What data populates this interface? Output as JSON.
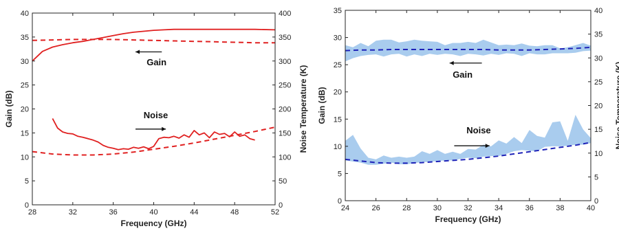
{
  "chart_data": [
    {
      "type": "line",
      "panel": "left",
      "xlabel": "Frequency (GHz)",
      "ylabel": "Gain (dB)",
      "y2label": "Noise Temperature (K)",
      "xlim": [
        28,
        52
      ],
      "ylim": [
        0,
        40
      ],
      "y2lim": [
        0,
        400
      ],
      "xticks": [
        28,
        32,
        36,
        40,
        44,
        48,
        52
      ],
      "yticks": [
        0,
        5,
        10,
        15,
        20,
        25,
        30,
        35,
        40
      ],
      "y2ticks": [
        0,
        50,
        100,
        150,
        200,
        250,
        300,
        350,
        400
      ],
      "grid": false,
      "legend": "none",
      "series": [
        {
          "axis": "left",
          "style": "solid",
          "color": "#e02020",
          "x": [
            28,
            29,
            30,
            31,
            32,
            33,
            34,
            35,
            36,
            37,
            38,
            39,
            40,
            41,
            42,
            43,
            44,
            46,
            48,
            50,
            52
          ],
          "y": [
            30.0,
            32.0,
            32.9,
            33.4,
            33.8,
            34.1,
            34.5,
            34.9,
            35.3,
            35.7,
            36.0,
            36.2,
            36.4,
            36.5,
            36.6,
            36.6,
            36.6,
            36.6,
            36.6,
            36.6,
            36.5
          ]
        },
        {
          "axis": "left",
          "style": "dashed",
          "color": "#e02020",
          "x": [
            28,
            30,
            32,
            34,
            36,
            38,
            40,
            42,
            44,
            46,
            48,
            50,
            52
          ],
          "y": [
            34.3,
            34.4,
            34.5,
            34.5,
            34.5,
            34.4,
            34.3,
            34.2,
            34.1,
            34.0,
            33.9,
            33.8,
            33.8
          ]
        },
        {
          "axis": "right",
          "style": "solid",
          "color": "#e02020",
          "x": [
            30,
            30.5,
            31,
            31.5,
            32,
            32.5,
            33,
            33.5,
            34,
            34.5,
            35,
            35.5,
            36,
            36.5,
            37,
            37.5,
            38,
            38.5,
            39,
            39.5,
            40,
            40.5,
            41,
            41.5,
            42,
            42.5,
            43,
            43.5,
            44,
            44.5,
            45,
            45.5,
            46,
            46.5,
            47,
            47.5,
            48,
            48.5,
            49,
            49.5,
            50
          ],
          "y": [
            180,
            160,
            152,
            149,
            148,
            143,
            141,
            138,
            135,
            131,
            124,
            120,
            118,
            115,
            117,
            116,
            120,
            118,
            121,
            117,
            122,
            138,
            141,
            140,
            143,
            139,
            146,
            141,
            155,
            146,
            150,
            140,
            152,
            147,
            149,
            142,
            152,
            143,
            146,
            138,
            135
          ]
        },
        {
          "axis": "right",
          "style": "dashed",
          "color": "#e02020",
          "x": [
            28,
            30,
            32,
            34,
            36,
            38,
            40,
            42,
            44,
            46,
            48,
            50,
            52
          ],
          "y": [
            111,
            106,
            104,
            104,
            106,
            110,
            116,
            122,
            129,
            137,
            145,
            153,
            162
          ]
        }
      ],
      "annotations": [
        {
          "text": "Gain",
          "x": 39.3,
          "y": 29.1,
          "arrow": "left",
          "arrow_from": 40.8,
          "arrow_to": 38.2,
          "arrow_y": 31.9
        },
        {
          "text": "Noise",
          "x": 39.0,
          "y": 18.1,
          "arrow": "right",
          "arrow_from": 38.2,
          "arrow_to": 41.2,
          "arrow_y": 15.8
        }
      ]
    },
    {
      "type": "area",
      "panel": "right",
      "xlabel": "Frequency (GHz)",
      "ylabel": "Gain (dB)",
      "y2label": "Noise Temperature (K)",
      "xlim": [
        24,
        40
      ],
      "ylim": [
        0,
        35
      ],
      "y2lim": [
        0,
        40
      ],
      "xticks": [
        24,
        26,
        28,
        30,
        32,
        34,
        36,
        38,
        40
      ],
      "yticks": [
        0,
        5,
        10,
        15,
        20,
        25,
        30,
        35
      ],
      "y2ticks": [
        0,
        5,
        10,
        15,
        20,
        25,
        30,
        35,
        40
      ],
      "grid": false,
      "legend": "none",
      "bands": [
        {
          "axis": "left",
          "color": "#a9ccee",
          "x": [
            24,
            24.5,
            25,
            25.5,
            26,
            26.5,
            27,
            27.5,
            28,
            28.5,
            29,
            29.5,
            30,
            30.5,
            31,
            31.5,
            32,
            32.5,
            33,
            33.5,
            34,
            34.5,
            35,
            35.5,
            36,
            36.5,
            37,
            37.5,
            38,
            38.5,
            39,
            39.5,
            40
          ],
          "lower": [
            25.6,
            26.2,
            26.6,
            26.8,
            26.9,
            26.5,
            26.9,
            27.0,
            26.5,
            26.9,
            26.6,
            27.0,
            26.8,
            27.0,
            26.9,
            26.6,
            27.0,
            26.9,
            26.7,
            27.0,
            26.8,
            27.1,
            27.0,
            26.6,
            27.1,
            26.9,
            26.9,
            27.1,
            27.1,
            27.1,
            27.2,
            27.5,
            27.6
          ],
          "upper": [
            28.6,
            28.2,
            29.0,
            28.4,
            29.4,
            29.6,
            29.6,
            29.1,
            29.3,
            29.6,
            29.4,
            29.3,
            29.2,
            28.6,
            29.0,
            29.0,
            29.2,
            29.0,
            29.6,
            29.1,
            28.6,
            28.7,
            28.6,
            28.9,
            28.5,
            28.4,
            28.6,
            28.6,
            28.0,
            28.2,
            28.6,
            29.0,
            28.5
          ]
        },
        {
          "axis": "left",
          "color": "#a9ccee",
          "x": [
            24,
            24.5,
            25,
            25.5,
            26,
            26.5,
            27,
            27.5,
            28,
            28.5,
            29,
            29.5,
            30,
            30.5,
            31,
            31.5,
            32,
            32.5,
            33,
            33.5,
            34,
            34.5,
            35,
            35.5,
            36,
            36.5,
            37,
            37.5,
            38,
            38.5,
            39,
            39.5,
            40
          ],
          "lower": [
            7.4,
            7.2,
            7.0,
            6.6,
            6.6,
            6.8,
            7.0,
            6.7,
            6.7,
            6.9,
            7.1,
            7.1,
            7.3,
            7.4,
            7.4,
            7.7,
            7.9,
            7.8,
            8.1,
            8.2,
            8.2,
            8.6,
            9.1,
            9.3,
            9.2,
            9.1,
            9.9,
            10.0,
            10.0,
            10.1,
            10.3,
            10.3,
            10.6
          ],
          "upper": [
            11.0,
            12.1,
            9.6,
            7.9,
            7.6,
            8.3,
            7.9,
            8.1,
            7.9,
            8.1,
            9.1,
            8.6,
            9.3,
            8.6,
            9.0,
            8.6,
            9.5,
            9.4,
            10.3,
            10.0,
            11.1,
            10.5,
            11.7,
            10.6,
            13.0,
            11.9,
            11.6,
            14.4,
            14.6,
            11.0,
            15.8,
            13.1,
            11.5
          ]
        }
      ],
      "series": [
        {
          "axis": "left",
          "style": "dashed",
          "color": "#1e22b8",
          "x": [
            24,
            25,
            26,
            27,
            28,
            29,
            30,
            31,
            32,
            33,
            34,
            35,
            36,
            37,
            38,
            39,
            40
          ],
          "y": [
            27.6,
            27.7,
            27.7,
            27.8,
            27.8,
            27.8,
            27.8,
            27.8,
            27.8,
            27.8,
            27.7,
            27.7,
            27.7,
            27.8,
            27.9,
            28.0,
            28.2
          ]
        },
        {
          "axis": "left",
          "style": "dashed",
          "color": "#1e22b8",
          "x": [
            24,
            25,
            26,
            27,
            28,
            29,
            30,
            31,
            32,
            33,
            34,
            35,
            36,
            37,
            38,
            39,
            40
          ],
          "y": [
            7.6,
            7.3,
            7.0,
            6.9,
            6.9,
            7.0,
            7.2,
            7.4,
            7.6,
            7.9,
            8.2,
            8.6,
            9.0,
            9.4,
            9.8,
            10.2,
            10.7
          ]
        }
      ],
      "annotations": [
        {
          "text": "Gain",
          "x": 31.0,
          "y": 22.6,
          "arrow": "left",
          "arrow_from": 32.9,
          "arrow_to": 30.8,
          "arrow_y": 25.3
        },
        {
          "text": "Noise",
          "x": 31.9,
          "y": 12.4,
          "arrow": "right",
          "arrow_from": 31.1,
          "arrow_to": 33.4,
          "arrow_y": 10.1
        }
      ]
    }
  ]
}
